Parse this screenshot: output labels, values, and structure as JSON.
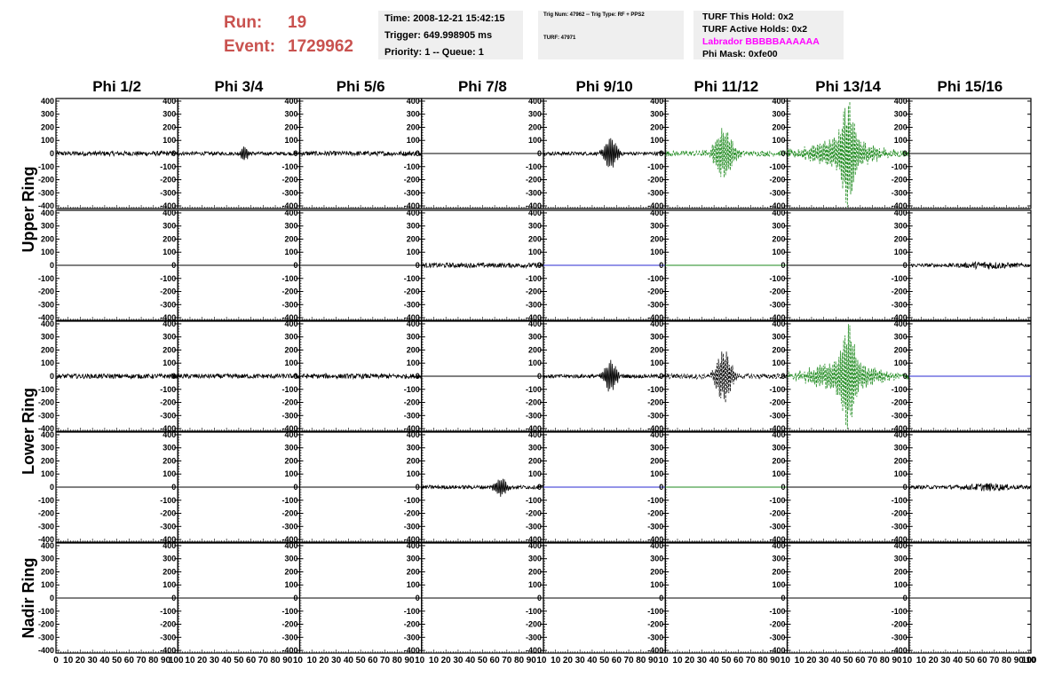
{
  "header": {
    "run_label": "Run:",
    "run_value": "19",
    "event_label": "Event:",
    "event_value": "1729962",
    "time": "Time: 2008-12-21 15:42:15",
    "trigger": "Trigger: 649.998905 ms",
    "priority": "Priority: 1 -- Queue: 1",
    "trig_num": "Trig Num: 47962 -- Trig Type: RF + PPS2",
    "turf": "TURF: 47971",
    "turf_hold": "TURF This Hold: 0x2",
    "turf_active": "TURF Active Holds: 0x2",
    "labrador": "Labrador BBBBBAAAAAA",
    "phi_mask": "Phi Mask: 0xfe00"
  },
  "colors": {
    "run_text": "#c9524f",
    "labrador_text": "#ff00ff",
    "trace_default": "#000000",
    "trace_triggered": "#1e8a1e",
    "trace_flat_blue": "#2a2ad0",
    "trace_flat_green": "#1e8a1e",
    "panel_bg": "#efefef"
  },
  "chart_data": {
    "type": "line",
    "columns": [
      "Phi 1/2",
      "Phi 3/4",
      "Phi 5/6",
      "Phi 7/8",
      "Phi 9/10",
      "Phi 11/12",
      "Phi 13/14",
      "Phi 15/16"
    ],
    "rings": [
      "Upper Ring",
      "Lower Ring",
      "Nadir Ring"
    ],
    "ylim": [
      -420,
      420
    ],
    "yticks": [
      400,
      300,
      200,
      100,
      0,
      -100,
      -200,
      -300,
      -400
    ],
    "xlim": [
      0,
      100
    ],
    "xtick_labels": [
      "0",
      "10",
      "20",
      "30",
      "40",
      "50",
      "60",
      "70",
      "80",
      "90",
      "100"
    ],
    "xtick_labels_short": [
      "10",
      "20",
      "30",
      "40",
      "50",
      "60",
      "70",
      "80",
      "90",
      "10"
    ],
    "rows": [
      [
        "noise",
        "spike55",
        "noise",
        "flat",
        "pulse55",
        "gpulse48",
        "gpulse50big",
        "flat"
      ],
      [
        "flat",
        "flat",
        "flat",
        "noise",
        "flatblue",
        "flatgreen",
        "flat",
        "noise65"
      ],
      [
        "noise",
        "noise",
        "noise",
        "flat",
        "pulse55",
        "bpulse48",
        "gpulse50big",
        "flatblue"
      ],
      [
        "flat",
        "flat",
        "flat",
        "pulse65",
        "flatblue",
        "flatgreen",
        "flat",
        "noise65"
      ],
      [
        "flat",
        "flat",
        "flat",
        "flat",
        "flat",
        "flat",
        "flat",
        "flat"
      ]
    ]
  }
}
